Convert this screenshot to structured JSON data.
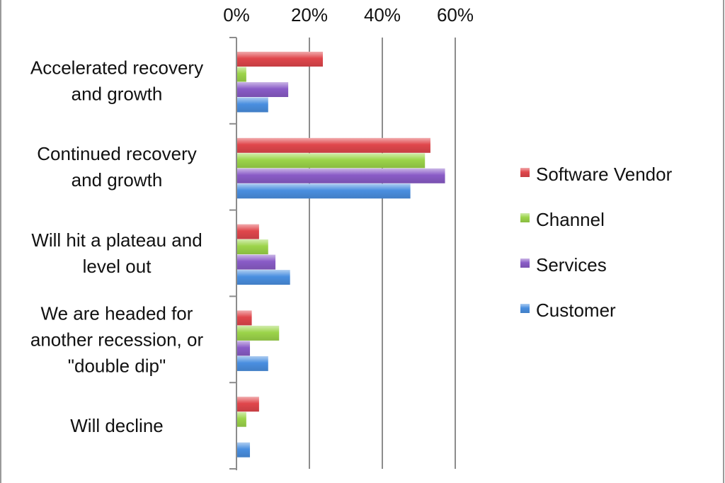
{
  "chart_data": {
    "type": "bar",
    "orientation": "horizontal",
    "title": "",
    "xlabel": "",
    "ylabel": "",
    "xlim": [
      0,
      60
    ],
    "x_ticks": [
      "0%",
      "20%",
      "40%",
      "60%"
    ],
    "x_tick_values": [
      0,
      20,
      40,
      60
    ],
    "grid": true,
    "legend_position": "right",
    "categories": [
      [
        "Accelerated recovery",
        "and growth"
      ],
      [
        "Continued recovery",
        "and growth"
      ],
      [
        "Will hit a plateau and",
        "level out"
      ],
      [
        "We are headed for",
        "another recession, or",
        "\"double dip\""
      ],
      [
        "Will decline"
      ]
    ],
    "series": [
      {
        "name": "Software Vendor",
        "color": "#e0474c",
        "values": [
          23.5,
          53,
          6,
          4,
          6
        ]
      },
      {
        "name": "Channel",
        "color": "#9cd44a",
        "values": [
          2.5,
          51.5,
          8.5,
          11.5,
          2.5
        ]
      },
      {
        "name": "Services",
        "color": "#8a5cc7",
        "values": [
          14,
          57,
          10.5,
          3.5,
          0
        ]
      },
      {
        "name": "Customer",
        "color": "#4a8fe0",
        "values": [
          8.5,
          47.5,
          14.5,
          8.5,
          3.5
        ]
      }
    ]
  }
}
